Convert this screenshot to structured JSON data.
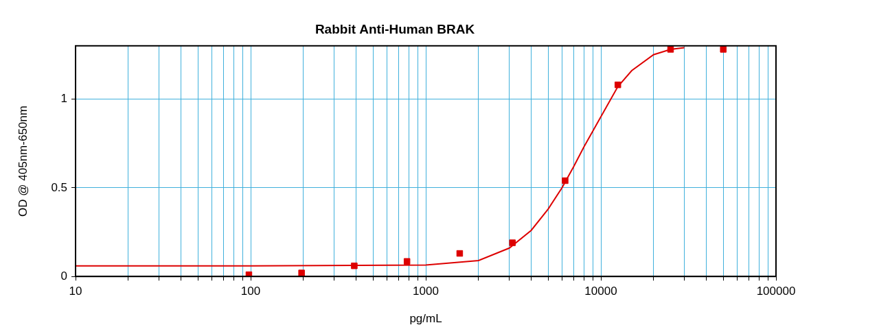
{
  "chart_data": {
    "type": "scatter",
    "title": "Rabbit Anti-Human BRAK",
    "x_label": "pg/mL",
    "y_label": "OD @ 405nm-650nm",
    "log": "x",
    "grid": true,
    "xlim": [
      10,
      100000
    ],
    "xticks": [
      10,
      100,
      1000,
      10000,
      100000
    ],
    "ylim": [
      0,
      1.3
    ],
    "yticks": [
      0,
      0.5,
      1
    ],
    "series": [
      {
        "type": "scatter",
        "color": "#dd0000",
        "marker": "square",
        "x": [
          97.7,
          195.3,
          390.6,
          781.25,
          1562.5,
          3125,
          6250,
          12500,
          25000,
          50000
        ],
        "values": [
          0.01,
          0.02,
          0.06,
          0.085,
          0.13,
          0.19,
          0.54,
          1.08,
          1.28,
          1.28
        ]
      },
      {
        "type": "line",
        "color": "#dd0000",
        "line_style": "solid",
        "x": [
          10,
          100,
          1000,
          2000,
          3000,
          4000,
          5000,
          6000,
          7000,
          8000,
          10000,
          12500,
          15000,
          20000,
          25000,
          30000
        ],
        "values": [
          0.06,
          0.06,
          0.065,
          0.09,
          0.16,
          0.26,
          0.38,
          0.5,
          0.62,
          0.73,
          0.9,
          1.07,
          1.16,
          1.25,
          1.28,
          1.29
        ]
      }
    ]
  }
}
